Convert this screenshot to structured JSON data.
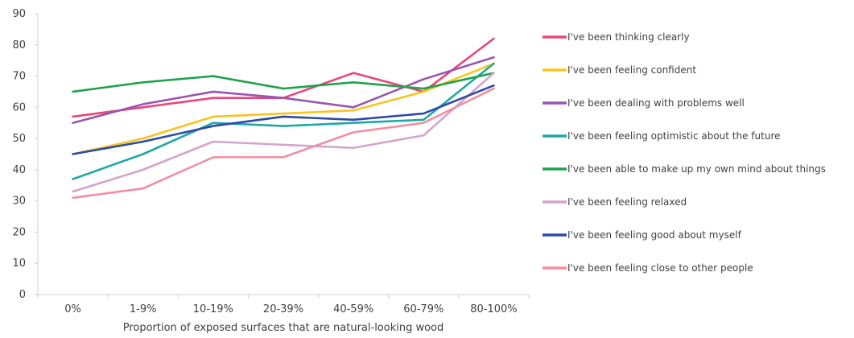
{
  "chart_data": {
    "type": "line",
    "title": "",
    "xlabel": "Proportion of exposed surfaces that are natural-looking wood",
    "ylabel": "",
    "ylim": [
      0,
      90
    ],
    "yticks": [
      "0",
      "10",
      "20",
      "30",
      "40",
      "50",
      "60",
      "70",
      "80",
      "90"
    ],
    "categories": [
      "0%",
      "1-9%",
      "10-19%",
      "20-39%",
      "40-59%",
      "60-79%",
      "80-100%"
    ],
    "grid": false,
    "legend_position": "right",
    "series": [
      {
        "name": "I've been thinking clearly",
        "color": "#e8457a",
        "values": [
          57,
          60,
          63,
          63,
          71,
          65,
          82
        ]
      },
      {
        "name": "I've been feeling confident",
        "color": "#f7c51e",
        "values": [
          45,
          50,
          57,
          58,
          59,
          65,
          74
        ]
      },
      {
        "name": "I've been dealing with problems well",
        "color": "#9a55b0",
        "values": [
          55,
          61,
          65,
          63,
          60,
          69,
          76
        ]
      },
      {
        "name": "I've been feeling optimistic about the future",
        "color": "#1fa9a3",
        "values": [
          37,
          45,
          55,
          54,
          55,
          56,
          74
        ]
      },
      {
        "name": "I've been able to make up my own mind about things",
        "color": "#23a24d",
        "values": [
          65,
          68,
          70,
          66,
          68,
          66,
          71
        ]
      },
      {
        "name": "I've been feeling relaxed",
        "color": "#d4a4cc",
        "values": [
          33,
          40,
          49,
          48,
          47,
          51,
          71
        ]
      },
      {
        "name": "I've been feeling good about myself",
        "color": "#2d4aa8",
        "values": [
          45,
          49,
          54,
          57,
          56,
          58,
          67
        ]
      },
      {
        "name": "I've been feeling close to other people",
        "color": "#f08fa0",
        "values": [
          31,
          34,
          44,
          44,
          52,
          55,
          66
        ]
      }
    ]
  }
}
